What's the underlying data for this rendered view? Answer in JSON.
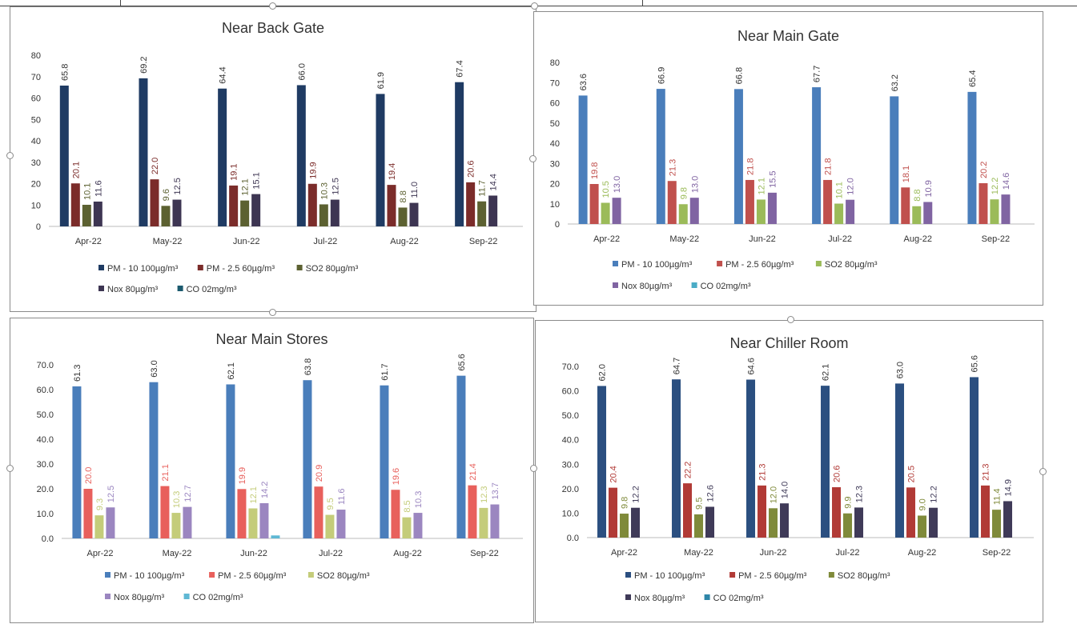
{
  "chart_data": [
    {
      "type": "bar",
      "title": "Near Back Gate",
      "categories": [
        "Apr-22",
        "May-22",
        "Jun-22",
        "Jul-22",
        "Aug-22",
        "Sep-22"
      ],
      "ylim": [
        0,
        80
      ],
      "yticks": [
        "0",
        "10",
        "20",
        "30",
        "40",
        "50",
        "60",
        "70",
        "80"
      ],
      "grid": false,
      "legend_position": "bottom",
      "series": [
        {
          "name": "PM - 10 100µg/m³",
          "color": "#1f3b63",
          "values": [
            65.8,
            69.2,
            64.4,
            66.0,
            61.9,
            67.4
          ],
          "labels": [
            "65.8",
            "69.2",
            "64.4",
            "66.0",
            "61.9",
            "67.4"
          ]
        },
        {
          "name": "PM - 2.5 60µg/m³",
          "color": "#7b2c2a",
          "values": [
            20.1,
            22.0,
            19.1,
            19.9,
            19.4,
            20.6
          ],
          "labels": [
            "20.1",
            "22.0",
            "19.1",
            "19.9",
            "19.4",
            "20.6"
          ]
        },
        {
          "name": "SO2  80µg/m³",
          "color": "#5c6131",
          "values": [
            10.1,
            9.6,
            12.1,
            10.3,
            8.8,
            11.7
          ],
          "labels": [
            "10.1",
            "9.6",
            "12.1",
            "10.3",
            "8.8",
            "11.7"
          ]
        },
        {
          "name": "Nox  80µg/m³",
          "color": "#3d3552",
          "values": [
            11.6,
            12.5,
            15.1,
            12.5,
            11.0,
            14.4
          ],
          "labels": [
            "11.6",
            "12.5",
            "15.1",
            "12.5",
            "11.0",
            "14.4"
          ]
        },
        {
          "name": "CO  02mg/m³",
          "color": "#1b5a6e",
          "values": [
            0,
            0,
            0,
            0,
            0,
            0
          ],
          "labels": []
        }
      ]
    },
    {
      "type": "bar",
      "title": "Near Main Gate",
      "categories": [
        "Apr-22",
        "May-22",
        "Jun-22",
        "Jul-22",
        "Aug-22",
        "Sep-22"
      ],
      "ylim": [
        0,
        80
      ],
      "yticks": [
        "0",
        "10",
        "20",
        "30",
        "40",
        "50",
        "60",
        "70",
        "80"
      ],
      "grid": false,
      "legend_position": "bottom",
      "series": [
        {
          "name": "PM - 10  100µg/m³",
          "color": "#4a7ebb",
          "values": [
            63.6,
            66.9,
            66.8,
            67.7,
            63.2,
            65.4
          ],
          "labels": [
            "63.6",
            "66.9",
            "66.8",
            "67.7",
            "63.2",
            "65.4"
          ]
        },
        {
          "name": "PM - 2.5 60µg/m³",
          "color": "#c0504d",
          "values": [
            19.8,
            21.3,
            21.8,
            21.8,
            18.1,
            20.2
          ],
          "labels": [
            "19.8",
            "21.3",
            "21.8",
            "21.8",
            "18.1",
            "20.2"
          ]
        },
        {
          "name": "SO2  80µg/m³",
          "color": "#9bbb59",
          "values": [
            10.5,
            9.8,
            12.1,
            10.1,
            8.8,
            12.2
          ],
          "labels": [
            "10.5",
            "9.8",
            "12.1",
            "10.1",
            "8.8",
            "12.2"
          ]
        },
        {
          "name": "Nox  80µg/m³",
          "color": "#8064a2",
          "values": [
            13.0,
            13.0,
            15.5,
            12.0,
            10.9,
            14.6
          ],
          "labels": [
            "13.0",
            "13.0",
            "15.5",
            "12.0",
            "10.9",
            "14.6"
          ]
        },
        {
          "name": "CO  02mg/m³",
          "color": "#4bacc6",
          "values": [
            0,
            0,
            0,
            0,
            0,
            0
          ],
          "labels": []
        }
      ]
    },
    {
      "type": "bar",
      "title": "Near Main Stores",
      "categories": [
        "Apr-22",
        "May-22",
        "Jun-22",
        "Jul-22",
        "Aug-22",
        "Sep-22"
      ],
      "ylim": [
        0,
        70
      ],
      "yticks": [
        "0.0",
        "10.0",
        "20.0",
        "30.0",
        "40.0",
        "50.0",
        "60.0",
        "70.0"
      ],
      "grid": false,
      "legend_position": "bottom",
      "series": [
        {
          "name": "PM - 10  100µg/m³",
          "color": "#4a7ebb",
          "values": [
            61.3,
            63.0,
            62.1,
            63.8,
            61.7,
            65.6
          ],
          "labels": [
            "61.3",
            "63.0",
            "62.1",
            "63.8",
            "61.7",
            "65.6"
          ]
        },
        {
          "name": "PM - 2.5 60µg/m³",
          "color": "#e8605c",
          "values": [
            20.0,
            21.1,
            19.9,
            20.9,
            19.6,
            21.4
          ],
          "labels": [
            "20.0",
            "21.1",
            "19.9",
            "20.9",
            "19.6",
            "21.4"
          ]
        },
        {
          "name": "SO2  80µg/m³",
          "color": "#c4cc7a",
          "values": [
            9.3,
            10.3,
            12.1,
            9.5,
            8.5,
            12.3
          ],
          "labels": [
            "9.3",
            "10.3",
            "12.1",
            "9.5",
            "8.5",
            "12.3"
          ]
        },
        {
          "name": "Nox  80µg/m³",
          "color": "#9b86c0",
          "values": [
            12.5,
            12.7,
            14.2,
            11.6,
            10.3,
            13.7
          ],
          "labels": [
            "12.5",
            "12.7",
            "14.2",
            "11.6",
            "10.3",
            "13.7"
          ]
        },
        {
          "name": "CO  02mg/m³",
          "color": "#5fb8d4",
          "values": [
            0,
            0,
            1.2,
            0,
            0,
            0
          ],
          "labels": []
        }
      ]
    },
    {
      "type": "bar",
      "title": "Near Chiller Room",
      "categories": [
        "Apr-22",
        "May-22",
        "Jun-22",
        "Jul-22",
        "Aug-22",
        "Sep-22"
      ],
      "ylim": [
        0,
        70
      ],
      "yticks": [
        "0.0",
        "10.0",
        "20.0",
        "30.0",
        "40.0",
        "50.0",
        "60.0",
        "70.0"
      ],
      "grid": false,
      "legend_position": "bottom",
      "series": [
        {
          "name": "PM - 10  100µg/m³",
          "color": "#2b4f80",
          "values": [
            62.0,
            64.7,
            64.6,
            62.1,
            63.0,
            65.6
          ],
          "labels": [
            "62.0",
            "64.7",
            "64.6",
            "62.1",
            "63.0",
            "65.6"
          ]
        },
        {
          "name": "PM - 2.5 60µg/m³",
          "color": "#b13a36",
          "values": [
            20.4,
            22.2,
            21.3,
            20.6,
            20.5,
            21.3
          ],
          "labels": [
            "20.4",
            "22.2",
            "21.3",
            "20.6",
            "20.5",
            "21.3"
          ]
        },
        {
          "name": "SO2  80µg/m³",
          "color": "#7f8a3a",
          "values": [
            9.8,
            9.5,
            12.0,
            9.9,
            9.0,
            11.4
          ],
          "labels": [
            "9.8",
            "9.5",
            "12.0",
            "9.9",
            "9.0",
            "11.4"
          ]
        },
        {
          "name": "Nox  80µg/m³",
          "color": "#3f3a58",
          "values": [
            12.2,
            12.6,
            14.0,
            12.3,
            12.2,
            14.9
          ],
          "labels": [
            "12.2",
            "12.6",
            "14.0",
            "12.3",
            "12.2",
            "14.9"
          ]
        },
        {
          "name": "CO  02mg/m³",
          "color": "#2e86a8",
          "values": [
            0,
            0,
            0,
            0,
            0,
            0
          ],
          "labels": []
        }
      ]
    }
  ]
}
